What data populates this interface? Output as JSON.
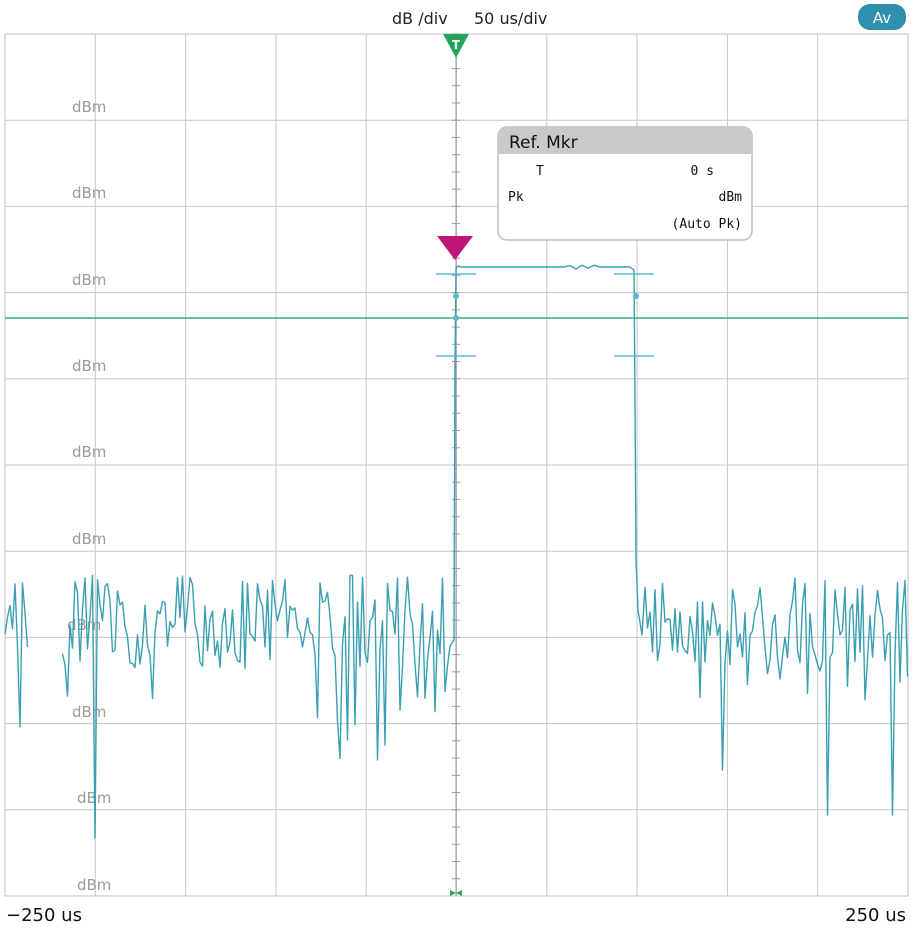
{
  "header": {
    "scale_label": "dB /div",
    "time_label": "50 us/div",
    "mode_badge": "Av"
  },
  "colors": {
    "trace": "#3a9fb3",
    "grid": "#c7c7c7",
    "threshold": "#33b07a",
    "trigger": "#25a55a",
    "marker": "#c0167a",
    "badge": "#2f8fae"
  },
  "trigger_label": "T",
  "y_labels": [
    "dBm",
    "dBm",
    "dBm",
    "dBm",
    "dBm",
    "dBm",
    "dBm",
    "dBm",
    "dBm",
    "dBm"
  ],
  "x_axis": {
    "left_label": "−250 us",
    "right_label": "250 us"
  },
  "marker_panel": {
    "title": "Ref. Mkr",
    "row1_name": "T",
    "row1_value": "0 s",
    "row2_name": "Pk",
    "row2_value": "dBm",
    "row3": "(Auto Pk)"
  },
  "chart_data": {
    "type": "line",
    "x_range_us": [
      -250,
      250
    ],
    "grid": true,
    "pulse_start_us": 0,
    "pulse_end_us": 100
  }
}
